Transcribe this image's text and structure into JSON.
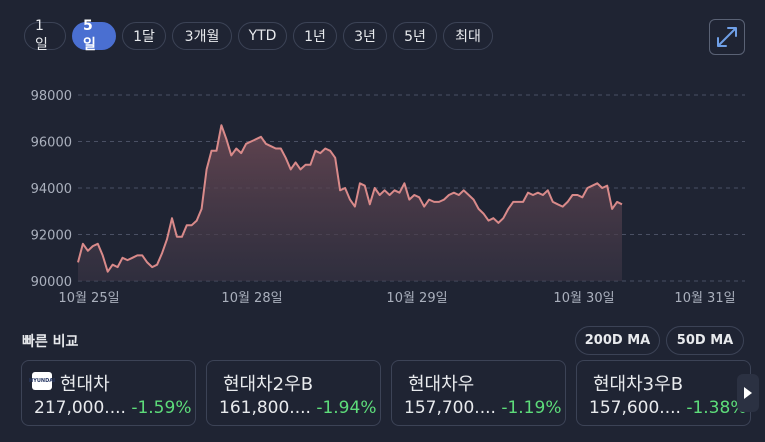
{
  "range_tabs": [
    {
      "label": "1일",
      "active": false
    },
    {
      "label": "5일",
      "active": true
    },
    {
      "label": "1달",
      "active": false
    },
    {
      "label": "3개월",
      "active": false
    },
    {
      "label": "YTD",
      "active": false
    },
    {
      "label": "1년",
      "active": false
    },
    {
      "label": "3년",
      "active": false
    },
    {
      "label": "5년",
      "active": false
    },
    {
      "label": "최대",
      "active": false
    }
  ],
  "expand_icon": "expand-arrows-icon",
  "colors": {
    "line": "#d98a8a",
    "fill_top": "#6e4a55",
    "grid": "#4a5064",
    "axis_text": "#aab0bd",
    "positive": "#5ddc7a",
    "active_tab": "#4a6fd1"
  },
  "chart_data": {
    "type": "area",
    "y_ticks": [
      "98000",
      "96000",
      "94000",
      "92000",
      "90000"
    ],
    "ylim": [
      90000,
      98000
    ],
    "x_tick_labels": [
      "10월 25일",
      "10월 28일",
      "10월 29일",
      "10월 30일",
      "10월 31일"
    ],
    "grid": true,
    "series": [
      {
        "values": [
          90800,
          91600,
          91300,
          91500,
          91600,
          91100,
          90400,
          90700,
          90600,
          91000,
          90900,
          91000,
          91100,
          91100,
          90800,
          90600,
          90700,
          91200,
          91800,
          92700,
          91900,
          91900,
          92400,
          92400,
          92600,
          93100,
          94800,
          95600,
          95600,
          96700,
          96100,
          95400,
          95700,
          95500,
          95900,
          96000,
          96100,
          96200,
          95900,
          95800,
          95700,
          95700,
          95300,
          94800,
          95100,
          94800,
          95000,
          95000,
          95600,
          95500,
          95700,
          95600,
          95300,
          93900,
          94000,
          93500,
          93200,
          94200,
          94100,
          93300,
          94000,
          93700,
          93900,
          93700,
          93900,
          93800,
          94200,
          93500,
          93700,
          93600,
          93200,
          93500,
          93400,
          93400,
          93500,
          93700,
          93800,
          93700,
          93900,
          93700,
          93500,
          93100,
          92900,
          92600,
          92700,
          92500,
          92700,
          93100,
          93400,
          93400,
          93400,
          93800,
          93700,
          93800,
          93700,
          93900,
          93400,
          93300,
          93200,
          93400,
          93700,
          93700,
          93600,
          94000,
          94100,
          94200,
          94000,
          94100,
          93100,
          93400,
          93300
        ]
      }
    ]
  },
  "quick_compare": {
    "title": "빠른 비교",
    "ma_buttons": [
      "200D MA",
      "50D MA"
    ],
    "cards": [
      {
        "name": "현대차",
        "price": "217,000....",
        "change": "-1.59%",
        "has_logo": true,
        "logo_text": "HYUNDAI"
      },
      {
        "name": "현대차2우B",
        "price": "161,800....",
        "change": "-1.94%",
        "has_logo": false
      },
      {
        "name": "현대차우",
        "price": "157,700....",
        "change": "-1.19%",
        "has_logo": false
      },
      {
        "name": "현대차3우B",
        "price": "157,600....",
        "change": "-1.38%",
        "has_logo": false
      }
    ]
  }
}
